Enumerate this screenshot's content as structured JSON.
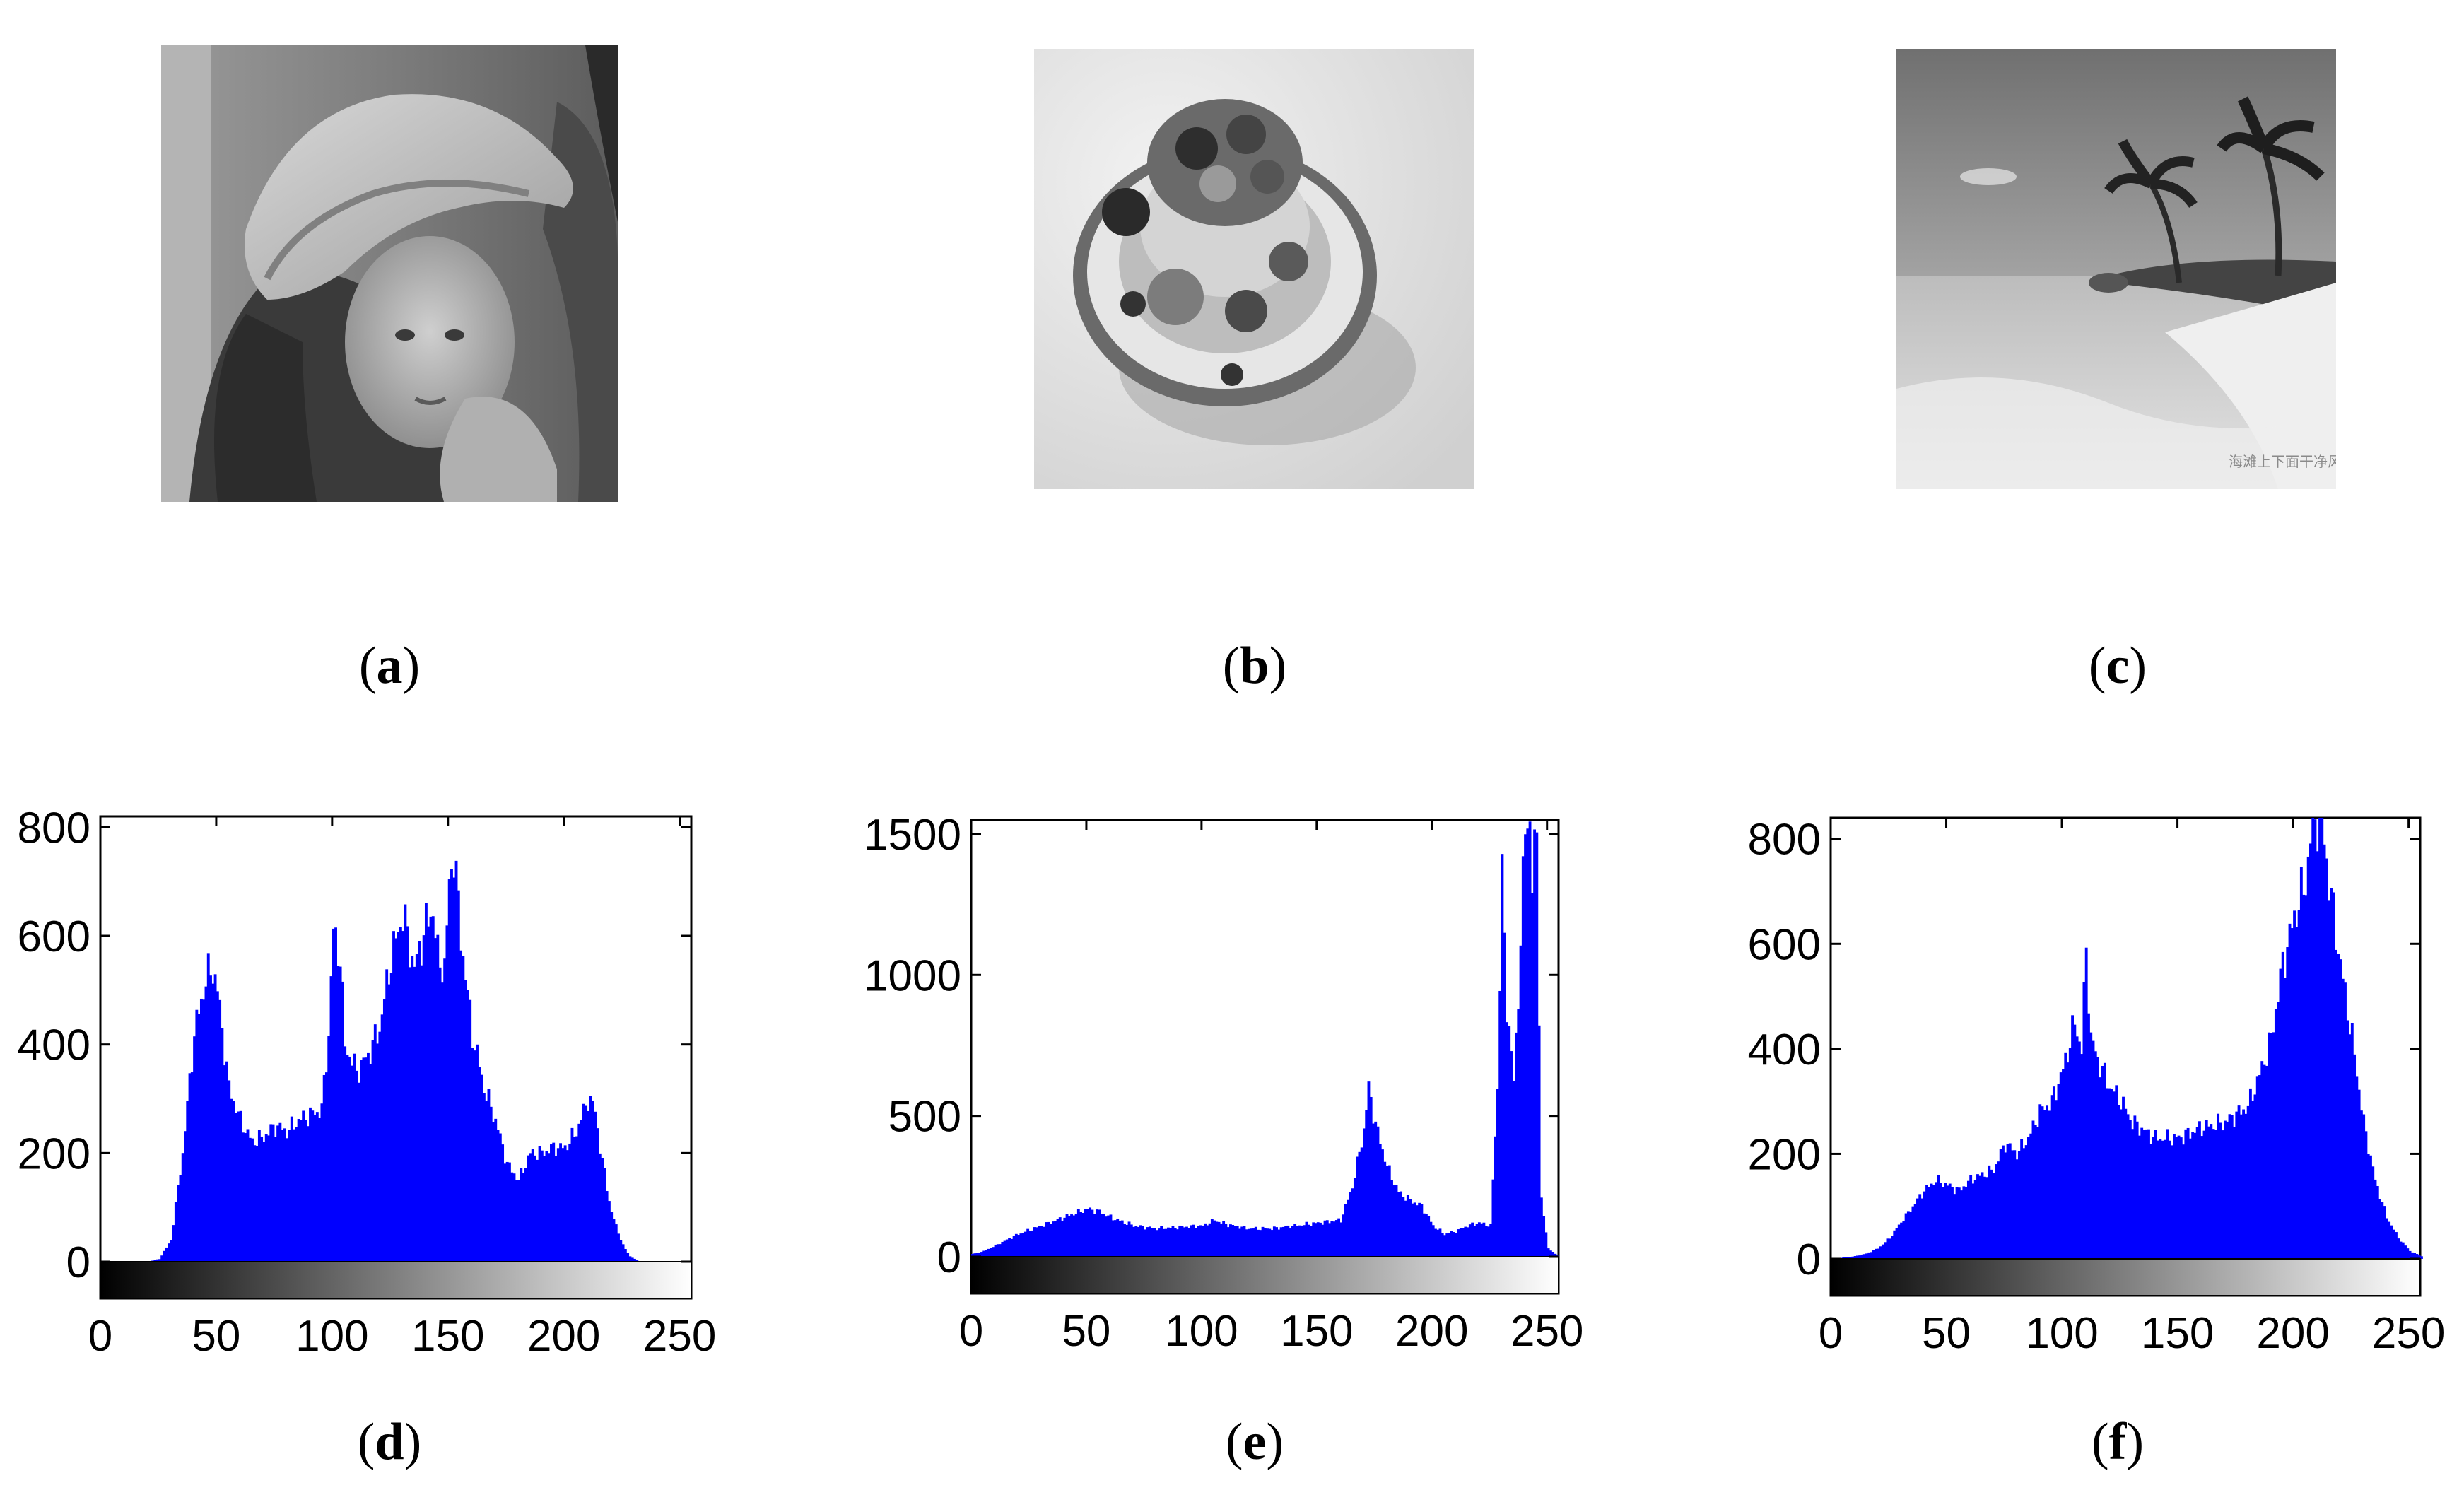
{
  "photos": [
    {
      "label": "a",
      "subject": "portrait-woman-hat"
    },
    {
      "label": "b",
      "subject": "cake-with-fruit"
    },
    {
      "label": "c",
      "subject": "beach-palm-trees",
      "watermark_text": "海滩上下面干净风光"
    }
  ],
  "chart_data": [
    {
      "type": "bar",
      "label": "d",
      "color": "#0000ff",
      "xlim": [
        0,
        255
      ],
      "ylim": [
        0,
        820
      ],
      "xticks": [
        "0",
        "50",
        "100",
        "150",
        "200",
        "250"
      ],
      "yticks": [
        "0",
        "200",
        "400",
        "600",
        "800"
      ],
      "profile": [
        [
          0,
          0
        ],
        [
          20,
          0
        ],
        [
          25,
          5
        ],
        [
          30,
          40
        ],
        [
          35,
          200
        ],
        [
          40,
          420
        ],
        [
          45,
          520
        ],
        [
          48,
          540
        ],
        [
          50,
          500
        ],
        [
          55,
          320
        ],
        [
          60,
          260
        ],
        [
          65,
          220
        ],
        [
          70,
          230
        ],
        [
          75,
          250
        ],
        [
          80,
          240
        ],
        [
          85,
          260
        ],
        [
          90,
          270
        ],
        [
          95,
          280
        ],
        [
          98,
          420
        ],
        [
          100,
          610
        ],
        [
          103,
          560
        ],
        [
          105,
          400
        ],
        [
          110,
          350
        ],
        [
          115,
          380
        ],
        [
          120,
          430
        ],
        [
          125,
          560
        ],
        [
          130,
          640
        ],
        [
          135,
          540
        ],
        [
          140,
          620
        ],
        [
          143,
          650
        ],
        [
          145,
          560
        ],
        [
          148,
          540
        ],
        [
          150,
          690
        ],
        [
          152,
          760
        ],
        [
          155,
          600
        ],
        [
          160,
          420
        ],
        [
          165,
          320
        ],
        [
          170,
          260
        ],
        [
          175,
          180
        ],
        [
          180,
          150
        ],
        [
          185,
          200
        ],
        [
          190,
          200
        ],
        [
          195,
          210
        ],
        [
          200,
          210
        ],
        [
          205,
          240
        ],
        [
          210,
          300
        ],
        [
          213,
          280
        ],
        [
          215,
          210
        ],
        [
          220,
          90
        ],
        [
          225,
          30
        ],
        [
          228,
          10
        ],
        [
          232,
          0
        ],
        [
          255,
          0
        ]
      ]
    },
    {
      "type": "bar",
      "label": "e",
      "color": "#0000ff",
      "xlim": [
        0,
        255
      ],
      "ylim": [
        0,
        1550
      ],
      "xticks": [
        "0",
        "50",
        "100",
        "150",
        "200",
        "250"
      ],
      "yticks": [
        "0",
        "500",
        "1000",
        "1500"
      ],
      "profile": [
        [
          0,
          10
        ],
        [
          5,
          20
        ],
        [
          10,
          40
        ],
        [
          20,
          80
        ],
        [
          30,
          110
        ],
        [
          40,
          140
        ],
        [
          50,
          170
        ],
        [
          55,
          160
        ],
        [
          60,
          140
        ],
        [
          70,
          110
        ],
        [
          80,
          100
        ],
        [
          90,
          105
        ],
        [
          100,
          110
        ],
        [
          105,
          130
        ],
        [
          110,
          115
        ],
        [
          120,
          100
        ],
        [
          130,
          100
        ],
        [
          140,
          110
        ],
        [
          150,
          120
        ],
        [
          160,
          130
        ],
        [
          165,
          250
        ],
        [
          170,
          450
        ],
        [
          172,
          600
        ],
        [
          175,
          470
        ],
        [
          180,
          320
        ],
        [
          185,
          230
        ],
        [
          190,
          200
        ],
        [
          195,
          180
        ],
        [
          200,
          110
        ],
        [
          205,
          80
        ],
        [
          210,
          90
        ],
        [
          215,
          110
        ],
        [
          220,
          120
        ],
        [
          225,
          110
        ],
        [
          228,
          600
        ],
        [
          230,
          1350
        ],
        [
          232,
          900
        ],
        [
          235,
          620
        ],
        [
          238,
          1100
        ],
        [
          240,
          1550
        ],
        [
          242,
          1550
        ],
        [
          243,
          1300
        ],
        [
          245,
          1550
        ],
        [
          247,
          200
        ],
        [
          250,
          30
        ],
        [
          253,
          10
        ],
        [
          255,
          0
        ]
      ]
    },
    {
      "type": "bar",
      "label": "f",
      "color": "#0000ff",
      "xlim": [
        0,
        255
      ],
      "ylim": [
        0,
        840
      ],
      "xticks": [
        "0",
        "50",
        "100",
        "150",
        "200",
        "250"
      ],
      "yticks": [
        "0",
        "200",
        "400",
        "600",
        "800"
      ],
      "profile": [
        [
          0,
          0
        ],
        [
          10,
          5
        ],
        [
          15,
          10
        ],
        [
          20,
          20
        ],
        [
          25,
          40
        ],
        [
          30,
          70
        ],
        [
          35,
          100
        ],
        [
          40,
          130
        ],
        [
          45,
          150
        ],
        [
          50,
          140
        ],
        [
          55,
          130
        ],
        [
          60,
          150
        ],
        [
          70,
          170
        ],
        [
          75,
          220
        ],
        [
          80,
          200
        ],
        [
          85,
          230
        ],
        [
          90,
          280
        ],
        [
          95,
          300
        ],
        [
          100,
          360
        ],
        [
          105,
          450
        ],
        [
          108,
          400
        ],
        [
          110,
          590
        ],
        [
          112,
          420
        ],
        [
          115,
          380
        ],
        [
          120,
          330
        ],
        [
          125,
          300
        ],
        [
          130,
          260
        ],
        [
          140,
          230
        ],
        [
          150,
          230
        ],
        [
          160,
          250
        ],
        [
          170,
          260
        ],
        [
          180,
          290
        ],
        [
          185,
          350
        ],
        [
          190,
          420
        ],
        [
          195,
          560
        ],
        [
          200,
          650
        ],
        [
          205,
          720
        ],
        [
          208,
          840
        ],
        [
          210,
          840
        ],
        [
          212,
          840
        ],
        [
          215,
          720
        ],
        [
          220,
          560
        ],
        [
          225,
          420
        ],
        [
          230,
          260
        ],
        [
          235,
          150
        ],
        [
          240,
          80
        ],
        [
          245,
          40
        ],
        [
          250,
          15
        ],
        [
          255,
          5
        ]
      ]
    }
  ]
}
